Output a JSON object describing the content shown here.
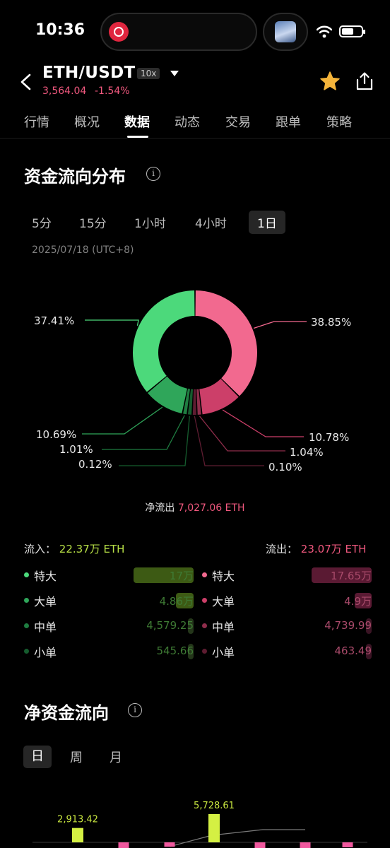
{
  "status_bar": {
    "time": "10:36"
  },
  "header": {
    "pair": "ETH/USDT",
    "leverage": "10x",
    "price": "3,564.04",
    "change": "-1.54%"
  },
  "tabs": [
    "行情",
    "概况",
    "数据",
    "动态",
    "交易",
    "跟单",
    "策略"
  ],
  "fund_flow": {
    "title": "资金流向分布",
    "info_icon": "i",
    "periods": [
      "5分",
      "15分",
      "1小时",
      "4小时",
      "1日"
    ],
    "selected_period": "1日",
    "date": "2025/07/18 (UTC+8)",
    "net_label": "净流出",
    "net_value": "7,027.06 ETH",
    "inflow_label": "流入：",
    "inflow_value": "22.37万 ETH",
    "outflow_label": "流出：",
    "outflow_value": "23.07万 ETH",
    "inflow_rows": [
      {
        "label": "特大",
        "value": "17万",
        "share": 0.76
      },
      {
        "label": "大单",
        "value": "4.86万",
        "share": 0.22
      },
      {
        "label": "中单",
        "value": "4,579.25",
        "share": 0.02
      },
      {
        "label": "小单",
        "value": "545.66",
        "share": 0.01
      }
    ],
    "outflow_rows": [
      {
        "label": "特大",
        "value": "17.65万",
        "share": 0.76
      },
      {
        "label": "大单",
        "value": "4.9万",
        "share": 0.21
      },
      {
        "label": "中单",
        "value": "4,739.99",
        "share": 0.02
      },
      {
        "label": "小单",
        "value": "463.49",
        "share": 0.01
      }
    ],
    "colors": {
      "in_huge": "#4cd97b",
      "in_big": "#2fa65a",
      "in_mid": "#1f7d41",
      "in_small": "#155c2e",
      "out_huge": "#f2698f",
      "out_big": "#cc3f69",
      "out_mid": "#8f2d4b",
      "out_small": "#5e1c31"
    }
  },
  "chart_data": {
    "type": "pie",
    "slices": [
      {
        "label": "38.85%",
        "value": 38.85,
        "color": "#f2698f"
      },
      {
        "label": "10.78%",
        "value": 10.78,
        "color": "#cc3f69"
      },
      {
        "label": "1.04%",
        "value": 1.04,
        "color": "#8f2d4b"
      },
      {
        "label": "0.10%",
        "value": 0.1,
        "color": "#5e1c31"
      },
      {
        "label": "0.12%",
        "value": 0.12,
        "color": "#155c2e"
      },
      {
        "label": "1.01%",
        "value": 1.01,
        "color": "#1f7d41"
      },
      {
        "label": "10.69%",
        "value": 10.69,
        "color": "#2fa65a"
      },
      {
        "label": "37.41%",
        "value": 37.41,
        "color": "#4cd97b"
      }
    ]
  },
  "net_flow": {
    "title": "净资金流向",
    "info_icon": "i",
    "periods": [
      "日",
      "周",
      "月"
    ],
    "selected_period": "日",
    "bar_labels": [
      "2,913.42",
      "5,728.61"
    ],
    "bars": [
      2913.42,
      -1200,
      -900,
      5728.61,
      -1500,
      -2200,
      -1000
    ],
    "bar_colors": {
      "positive": "#d4f043",
      "negative": "#f0589e"
    }
  }
}
